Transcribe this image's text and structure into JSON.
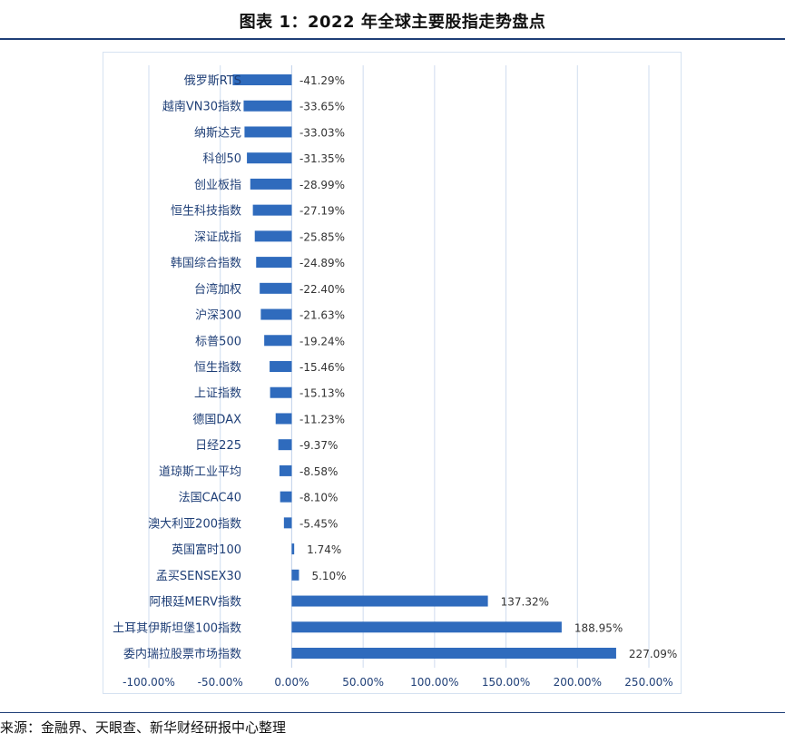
{
  "title": "图表 1：2022 年全球主要股指走势盘点",
  "source": "来源：金融界、天眼查、新华财经研报中心整理",
  "chart_data": {
    "type": "bar",
    "orientation": "horizontal",
    "categories": [
      "俄罗斯RTS",
      "越南VN30指数",
      "纳斯达克",
      "科创50",
      "创业板指",
      "恒生科技指数",
      "深证成指",
      "韩国综合指数",
      "台湾加权",
      "沪深300",
      "标普500",
      "恒生指数",
      "上证指数",
      "德国DAX",
      "日经225",
      "道琼斯工业平均",
      "法国CAC40",
      "澳大利亚200指数",
      "英国富时100",
      "孟买SENSEX30",
      "阿根廷MERV指数",
      "土耳其伊斯坦堡100指数",
      "委内瑞拉股票市场指数"
    ],
    "values": [
      -41.29,
      -33.65,
      -33.03,
      -31.35,
      -28.99,
      -27.19,
      -25.85,
      -24.89,
      -22.4,
      -21.63,
      -19.24,
      -15.46,
      -15.13,
      -11.23,
      -9.37,
      -8.58,
      -8.1,
      -5.45,
      1.74,
      5.1,
      137.32,
      188.95,
      227.09
    ],
    "value_labels": [
      "-41.29%",
      "-33.65%",
      "-33.03%",
      "-31.35%",
      "-28.99%",
      "-27.19%",
      "-25.85%",
      "-24.89%",
      "-22.40%",
      "-21.63%",
      "-19.24%",
      "-15.46%",
      "-15.13%",
      "-11.23%",
      "-9.37%",
      "-8.58%",
      "-8.10%",
      "-5.45%",
      "1.74%",
      "5.10%",
      "137.32%",
      "188.95%",
      "227.09%"
    ],
    "x_ticks": [
      -100,
      -50,
      0,
      50,
      100,
      150,
      200,
      250
    ],
    "x_tick_labels": [
      "-100.00%",
      "-50.00%",
      "0.00%",
      "50.00%",
      "100.00%",
      "150.00%",
      "200.00%",
      "250.00%"
    ],
    "xlim": [
      -100,
      250
    ],
    "grid": "vertical",
    "legend": "none",
    "bar_color": "#2f6bbd",
    "grid_color": "#cfdcef",
    "axis_color": "#c8d7ec",
    "label_color": "#1f3f77"
  }
}
